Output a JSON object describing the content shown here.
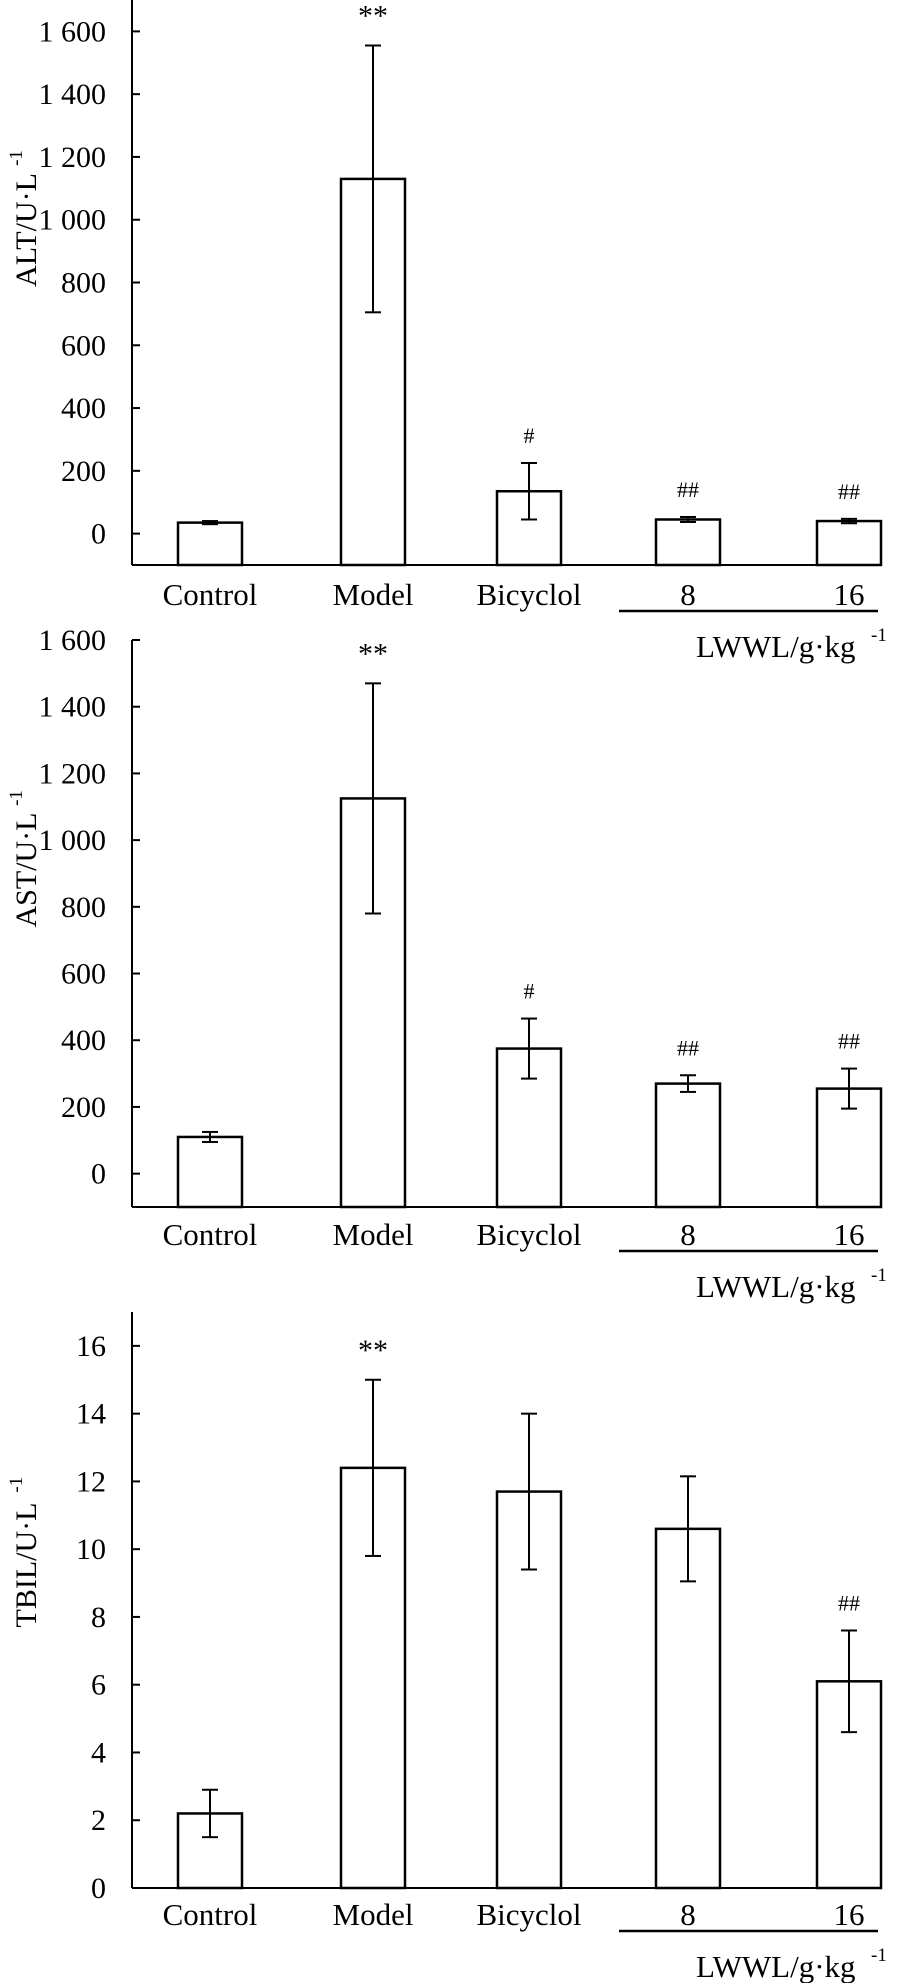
{
  "chart_data": [
    {
      "type": "bar",
      "categories": [
        "Control",
        "Model",
        "Bicyclol",
        "8",
        "16"
      ],
      "values": [
        35,
        1130,
        135,
        45,
        40
      ],
      "errors": [
        5,
        425,
        90,
        8,
        7
      ],
      "significance": [
        "",
        "**",
        "#",
        "##",
        "##"
      ],
      "ylabel": "ALT/U·L",
      "ylabel_superscript": "-1",
      "ylim": [
        -100,
        1700
      ],
      "yticks": [
        0,
        200,
        400,
        600,
        800,
        1000,
        1200,
        1400,
        1600
      ],
      "ytick_labels": [
        "0",
        "200",
        "400",
        "600",
        "800",
        "1 000",
        "1 200",
        "1 400",
        "1 600"
      ],
      "group_label": "LWWL/g·kg",
      "group_label_superscript": "-1"
    },
    {
      "type": "bar",
      "categories": [
        "Control",
        "Model",
        "Bicyclol",
        "8",
        "16"
      ],
      "values": [
        110,
        1125,
        375,
        270,
        255
      ],
      "errors": [
        15,
        345,
        90,
        25,
        60
      ],
      "significance": [
        "",
        "**",
        "#",
        "##",
        "##"
      ],
      "ylabel": "AST/U·L",
      "ylabel_superscript": "-1",
      "ylim": [
        -100,
        1600
      ],
      "yticks": [
        0,
        200,
        400,
        600,
        800,
        1000,
        1200,
        1400,
        1600
      ],
      "ytick_labels": [
        "0",
        "200",
        "400",
        "600",
        "800",
        "1 000",
        "1 200",
        "1 400",
        "1 600"
      ],
      "group_label": "LWWL/g·kg",
      "group_label_superscript": "-1"
    },
    {
      "type": "bar",
      "categories": [
        "Control",
        "Model",
        "Bicyclol",
        "8",
        "16"
      ],
      "values": [
        2.2,
        12.4,
        11.7,
        10.6,
        6.1
      ],
      "errors": [
        0.7,
        2.6,
        2.3,
        1.55,
        1.5
      ],
      "significance": [
        "",
        "**",
        "",
        "",
        "##"
      ],
      "ylabel": "TBIL/U·L",
      "ylabel_superscript": "-1",
      "ylim": [
        0,
        17
      ],
      "yticks": [
        0,
        2,
        4,
        6,
        8,
        10,
        12,
        14,
        16
      ],
      "ytick_labels": [
        "0",
        "2",
        "4",
        "6",
        "8",
        "10",
        "12",
        "14",
        "16"
      ],
      "group_label": "LWWL/g·kg",
      "group_label_superscript": "-1"
    }
  ]
}
